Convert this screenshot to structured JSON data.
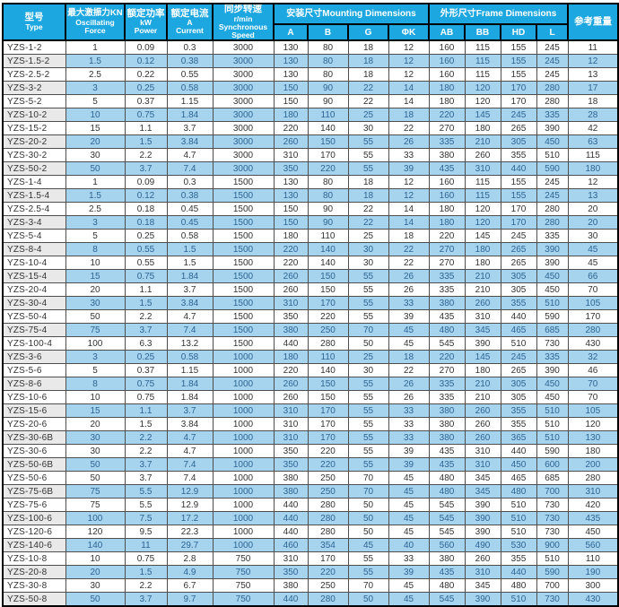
{
  "table": {
    "header": {
      "type": {
        "zh": "型号",
        "en": "Type"
      },
      "force": {
        "zh": "最大激振力KN",
        "en1": "Oscillating",
        "en2": "Force"
      },
      "power": {
        "zh": "额定功率",
        "en1": "kW",
        "en2": "Power"
      },
      "current": {
        "zh": "额定电流",
        "en1": "A",
        "en2": "Current"
      },
      "speed": {
        "zh": "同步转速",
        "en1": "r/min",
        "en2": "Synchronous Speed"
      },
      "mounting_group": "安装尺寸Mounting Dimensions",
      "frame_group": "外形尺寸Frame Dimensions",
      "weight": "参考重量",
      "dims": [
        "A",
        "B",
        "G",
        "ΦK",
        "AB",
        "BB",
        "HD",
        "L"
      ]
    },
    "columns": [
      "model",
      "force_kn",
      "power_kw",
      "current_a",
      "speed_rpm",
      "a",
      "b",
      "g",
      "phik",
      "ab",
      "bb",
      "hd",
      "l",
      "weight_kg"
    ],
    "rows": [
      [
        "YZS-1-2",
        "1",
        "0.09",
        "0.3",
        "3000",
        "130",
        "80",
        "18",
        "12",
        "160",
        "115",
        "155",
        "245",
        "11"
      ],
      [
        "YZS-1.5-2",
        "1.5",
        "0.12",
        "0.38",
        "3000",
        "130",
        "80",
        "18",
        "12",
        "160",
        "115",
        "155",
        "245",
        "12"
      ],
      [
        "YZS-2.5-2",
        "2.5",
        "0.22",
        "0.55",
        "3000",
        "130",
        "80",
        "18",
        "12",
        "160",
        "115",
        "155",
        "245",
        "13"
      ],
      [
        "YZS-3-2",
        "3",
        "0.25",
        "0.58",
        "3000",
        "150",
        "90",
        "22",
        "14",
        "180",
        "120",
        "170",
        "280",
        "17"
      ],
      [
        "YZS-5-2",
        "5",
        "0.37",
        "1.15",
        "3000",
        "150",
        "90",
        "22",
        "14",
        "180",
        "120",
        "170",
        "280",
        "18"
      ],
      [
        "YZS-10-2",
        "10",
        "0.75",
        "1.84",
        "3000",
        "180",
        "110",
        "25",
        "18",
        "220",
        "145",
        "245",
        "335",
        "28"
      ],
      [
        "YZS-15-2",
        "15",
        "1.1",
        "3.7",
        "3000",
        "220",
        "140",
        "30",
        "22",
        "270",
        "180",
        "265",
        "390",
        "42"
      ],
      [
        "YZS-20-2",
        "20",
        "1.5",
        "3.84",
        "3000",
        "260",
        "150",
        "55",
        "26",
        "335",
        "210",
        "305",
        "450",
        "63"
      ],
      [
        "YZS-30-2",
        "30",
        "2.2",
        "4.7",
        "3000",
        "310",
        "170",
        "55",
        "33",
        "380",
        "260",
        "355",
        "510",
        "115"
      ],
      [
        "YZS-50-2",
        "50",
        "3.7",
        "7.4",
        "3000",
        "350",
        "220",
        "55",
        "39",
        "435",
        "310",
        "440",
        "590",
        "180"
      ],
      [
        "YZS-1-4",
        "1",
        "0.09",
        "0.3",
        "1500",
        "130",
        "80",
        "18",
        "12",
        "160",
        "115",
        "155",
        "245",
        "12"
      ],
      [
        "YZS-1.5-4",
        "1.5",
        "0.12",
        "0.38",
        "1500",
        "130",
        "80",
        "18",
        "12",
        "160",
        "115",
        "155",
        "245",
        "13"
      ],
      [
        "YZS-2.5-4",
        "2.5",
        "0.18",
        "0.45",
        "1500",
        "150",
        "90",
        "22",
        "14",
        "180",
        "120",
        "170",
        "280",
        "20"
      ],
      [
        "YZS-3-4",
        "3",
        "0.18",
        "0.45",
        "1500",
        "150",
        "90",
        "22",
        "14",
        "180",
        "120",
        "170",
        "280",
        "20"
      ],
      [
        "YZS-5-4",
        "5",
        "0.25",
        "0.58",
        "1500",
        "180",
        "110",
        "25",
        "18",
        "220",
        "145",
        "245",
        "335",
        "30"
      ],
      [
        "YZS-8-4",
        "8",
        "0.55",
        "1.5",
        "1500",
        "220",
        "140",
        "30",
        "22",
        "270",
        "180",
        "265",
        "390",
        "45"
      ],
      [
        "YZS-10-4",
        "10",
        "0.55",
        "1.5",
        "1500",
        "220",
        "140",
        "30",
        "22",
        "270",
        "180",
        "265",
        "390",
        "45"
      ],
      [
        "YZS-15-4",
        "15",
        "0.75",
        "1.84",
        "1500",
        "260",
        "150",
        "55",
        "26",
        "335",
        "210",
        "305",
        "450",
        "66"
      ],
      [
        "YZS-20-4",
        "20",
        "1.1",
        "3.7",
        "1500",
        "260",
        "150",
        "55",
        "26",
        "335",
        "210",
        "305",
        "450",
        "70"
      ],
      [
        "YZS-30-4",
        "30",
        "1.5",
        "3.84",
        "1500",
        "310",
        "170",
        "55",
        "33",
        "380",
        "260",
        "355",
        "510",
        "105"
      ],
      [
        "YZS-50-4",
        "50",
        "2.2",
        "4.7",
        "1500",
        "350",
        "220",
        "55",
        "39",
        "435",
        "310",
        "440",
        "590",
        "170"
      ],
      [
        "YZS-75-4",
        "75",
        "3.7",
        "7.4",
        "1500",
        "380",
        "250",
        "70",
        "45",
        "480",
        "345",
        "465",
        "685",
        "280"
      ],
      [
        "YZS-100-4",
        "100",
        "6.3",
        "13.2",
        "1500",
        "440",
        "280",
        "50",
        "45",
        "545",
        "390",
        "510",
        "730",
        "430"
      ],
      [
        "YZS-3-6",
        "3",
        "0.25",
        "0.58",
        "1000",
        "180",
        "110",
        "25",
        "18",
        "220",
        "145",
        "245",
        "335",
        "32"
      ],
      [
        "YZS-5-6",
        "5",
        "0.37",
        "1.15",
        "1000",
        "220",
        "140",
        "30",
        "22",
        "270",
        "180",
        "265",
        "390",
        "46"
      ],
      [
        "YZS-8-6",
        "8",
        "0.75",
        "1.84",
        "1000",
        "260",
        "150",
        "55",
        "26",
        "335",
        "210",
        "305",
        "450",
        "70"
      ],
      [
        "YZS-10-6",
        "10",
        "0.75",
        "1.84",
        "1000",
        "260",
        "150",
        "55",
        "26",
        "335",
        "210",
        "305",
        "450",
        "70"
      ],
      [
        "YZS-15-6",
        "15",
        "1.1",
        "3.7",
        "1000",
        "310",
        "170",
        "55",
        "33",
        "380",
        "260",
        "355",
        "510",
        "105"
      ],
      [
        "YZS-20-6",
        "20",
        "1.5",
        "3.84",
        "1000",
        "310",
        "170",
        "55",
        "33",
        "380",
        "260",
        "355",
        "510",
        "120"
      ],
      [
        "YZS-30-6B",
        "30",
        "2.2",
        "4.7",
        "1000",
        "310",
        "170",
        "55",
        "33",
        "380",
        "260",
        "365",
        "510",
        "130"
      ],
      [
        "YZS-30-6",
        "30",
        "2.2",
        "4.7",
        "1000",
        "350",
        "220",
        "55",
        "39",
        "435",
        "310",
        "440",
        "590",
        "180"
      ],
      [
        "YZS-50-6B",
        "50",
        "3.7",
        "7.4",
        "1000",
        "350",
        "220",
        "55",
        "39",
        "435",
        "310",
        "450",
        "600",
        "200"
      ],
      [
        "YZS-50-6",
        "50",
        "3.7",
        "7.4",
        "1000",
        "380",
        "250",
        "70",
        "45",
        "480",
        "345",
        "465",
        "685",
        "280"
      ],
      [
        "YZS-75-6B",
        "75",
        "5.5",
        "12.9",
        "1000",
        "380",
        "250",
        "70",
        "45",
        "480",
        "345",
        "480",
        "700",
        "310"
      ],
      [
        "YZS-75-6",
        "75",
        "5.5",
        "12.9",
        "1000",
        "440",
        "280",
        "50",
        "45",
        "545",
        "390",
        "510",
        "730",
        "420"
      ],
      [
        "YZS-100-6",
        "100",
        "7.5",
        "17.2",
        "1000",
        "440",
        "280",
        "50",
        "45",
        "545",
        "390",
        "510",
        "730",
        "435"
      ],
      [
        "YZS-120-6",
        "120",
        "9.5",
        "22.3",
        "1000",
        "440",
        "280",
        "50",
        "45",
        "545",
        "390",
        "510",
        "730",
        "450"
      ],
      [
        "YZS-140-6",
        "140",
        "11",
        "29.7",
        "1000",
        "460",
        "354",
        "45",
        "40",
        "560",
        "490",
        "530",
        "900",
        "560"
      ],
      [
        "YZS-10-8",
        "10",
        "0.75",
        "2.8",
        "750",
        "310",
        "170",
        "55",
        "33",
        "380",
        "260",
        "355",
        "510",
        "110"
      ],
      [
        "YZS-20-8",
        "20",
        "1.5",
        "4.9",
        "750",
        "350",
        "220",
        "55",
        "39",
        "435",
        "310",
        "440",
        "590",
        "190"
      ],
      [
        "YZS-30-8",
        "30",
        "2.2",
        "6.7",
        "750",
        "380",
        "250",
        "70",
        "45",
        "480",
        "345",
        "480",
        "700",
        "300"
      ],
      [
        "YZS-50-8",
        "50",
        "3.7",
        "9.7",
        "750",
        "440",
        "280",
        "50",
        "45",
        "545",
        "390",
        "510",
        "730",
        "430"
      ]
    ]
  },
  "colors": {
    "header_bg": "#1da7e0",
    "header_text": "#ffffff",
    "alt_row_bg": "#a6d3ee",
    "type_alt_bg": "#e9e9e9",
    "grid_border": "#4e4e4e",
    "outer_border": "#000000",
    "text": "#333333",
    "alt_text": "#2e6591"
  }
}
